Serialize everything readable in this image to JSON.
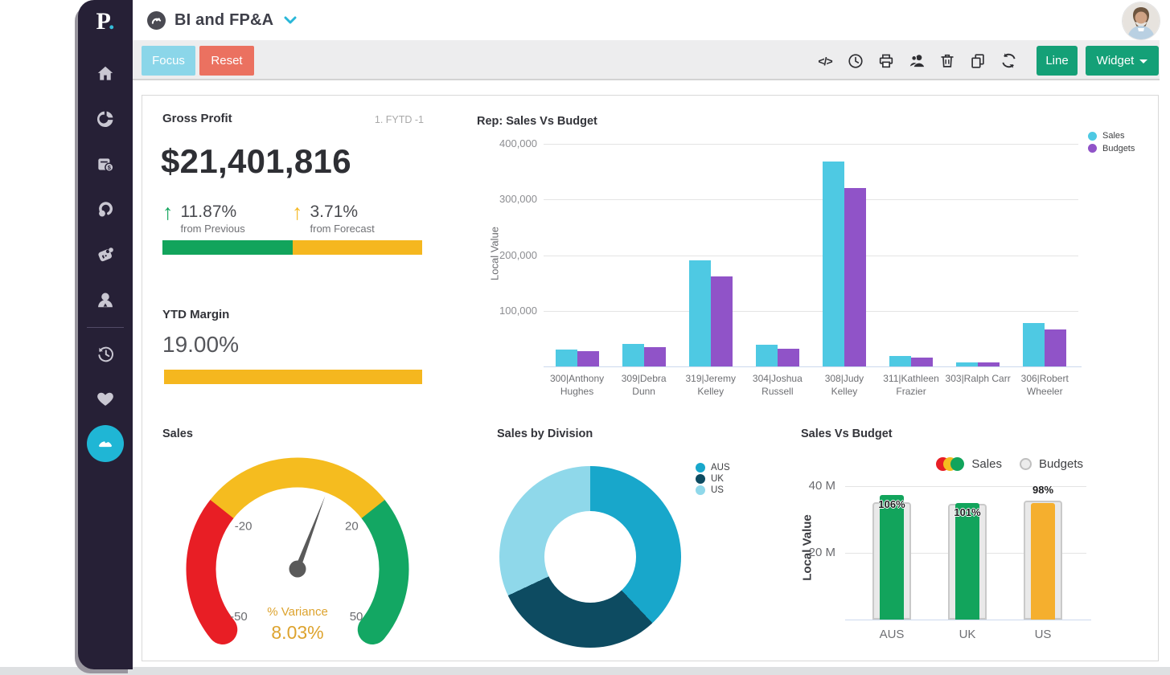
{
  "app": {
    "logo_letter": "P",
    "logo_dot": ".",
    "title": "BI and FP&A"
  },
  "toolbar": {
    "focus_label": "Focus",
    "reset_label": "Reset",
    "line_label": "Line",
    "widget_label": "Widget",
    "icon_names": [
      "code-icon",
      "clock-icon",
      "print-icon",
      "users-icon",
      "trash-icon",
      "copy-icon",
      "refresh-icon"
    ]
  },
  "sidebar": {
    "icon_names": [
      "home-icon",
      "pie-chart-icon",
      "invoice-icon",
      "rebates-icon",
      "tag-icon",
      "user-icon",
      "history-icon",
      "heart-icon",
      "dashboard-icon"
    ],
    "active_item": "dashboard-icon",
    "active_color": "#1fb6d5"
  },
  "kpi": {
    "title": "Gross Profit",
    "badge": "1. FYTD -1",
    "value": "$21,401,816",
    "delta_previous": {
      "pct": "11.87%",
      "label": "from Previous",
      "color": "#12a45c"
    },
    "delta_forecast": {
      "pct": "3.71%",
      "label": "from Forecast",
      "color": "#f5b71f"
    },
    "progress": {
      "green_pct": 50,
      "yellow_pct": 50,
      "green_color": "#12a45c",
      "yellow_color": "#f5b71f"
    },
    "ytd": {
      "title": "YTD Margin",
      "value": "19.00%",
      "bar_color": "#f5b71f"
    }
  },
  "chart_data": [
    {
      "type": "bar",
      "title": "Rep: Sales Vs Budget",
      "ylabel": "Local Value",
      "ylim": [
        0,
        400000
      ],
      "yticks": [
        100000,
        200000,
        300000,
        400000
      ],
      "grid": true,
      "legend_position": "top-right",
      "categories": [
        "300|Anthony Hughes",
        "309|Debra Dunn",
        "319|Jeremy Kelley",
        "304|Joshua Russell",
        "308|Judy Kelley",
        "311|Kathleen Frazier",
        "303|Ralph Carr",
        "306|Robert Wheeler"
      ],
      "series": [
        {
          "name": "Sales",
          "color": "#4ec9e3",
          "values": [
            31000,
            41000,
            190000,
            39000,
            368000,
            19000,
            6500,
            78000
          ]
        },
        {
          "name": "Budgets",
          "color": "#9053c8",
          "values": [
            27000,
            35000,
            162000,
            32000,
            320000,
            16000,
            7000,
            67000
          ]
        }
      ]
    },
    {
      "type": "gauge",
      "title": "Sales",
      "min": -50,
      "max": 50,
      "value": 8.03,
      "value_label": "8.03%",
      "caption": "% Variance",
      "ticks": [
        -20,
        20,
        -50,
        50
      ],
      "segments": [
        {
          "from": -50,
          "to": -20,
          "color": "#e81e25"
        },
        {
          "from": -20,
          "to": 20,
          "color": "#f5bc1f"
        },
        {
          "from": 20,
          "to": 50,
          "color": "#13a763"
        }
      ],
      "needle_color": "#5a5a5a"
    },
    {
      "type": "pie",
      "subtype": "donut",
      "title": "Sales by Division",
      "labels": [
        "AUS",
        "UK",
        "US"
      ],
      "values": [
        38,
        30,
        32
      ],
      "colors": [
        "#18a7cb",
        "#0d4b61",
        "#8fd8ea"
      ],
      "legend_position": "top-right"
    },
    {
      "type": "bar",
      "subtype": "bullet",
      "title": "Sales Vs Budget",
      "ylabel": "Local Value",
      "unit": "M",
      "ylim": [
        0,
        44
      ],
      "yticks": [
        {
          "value": 40,
          "label": "40 M"
        },
        {
          "value": 20,
          "label": "20 M"
        }
      ],
      "categories": [
        "AUS",
        "UK",
        "US"
      ],
      "series": [
        {
          "name": "Sales",
          "values_m": [
            37.4,
            34.9,
            34.9
          ],
          "colors": [
            "#12a45c",
            "#12a45c",
            "#f5af2e"
          ],
          "pct_labels": [
            "106%",
            "101%",
            "98%"
          ],
          "label_pos": [
            "inside",
            "inside",
            "above"
          ]
        },
        {
          "name": "Budgets",
          "values_m": [
            35.3,
            34.6,
            35.6
          ],
          "color": "#e9e9e9",
          "border_color": "#c9c9c9"
        }
      ],
      "legend": {
        "sales_marker_colors": [
          "#e81e25",
          "#f5bc1f",
          "#12a45c"
        ],
        "budgets_marker_color": "#ececec"
      }
    }
  ]
}
